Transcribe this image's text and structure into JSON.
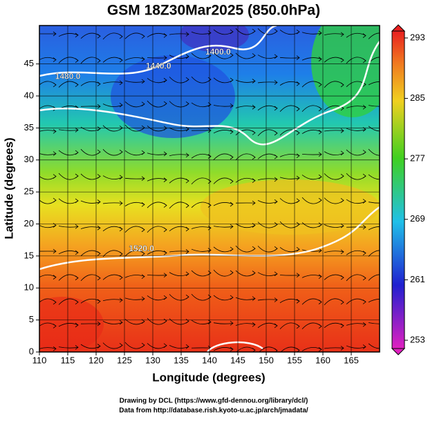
{
  "title": "GSM 18Z30Mar2025 (850.0hPa)",
  "x_axis": {
    "label": "Longitude (degrees)",
    "lim": [
      110,
      170
    ],
    "ticks": [
      110,
      115,
      120,
      125,
      130,
      135,
      140,
      145,
      150,
      155,
      160,
      165
    ]
  },
  "y_axis": {
    "label": "Latitude  (degrees)",
    "lim": [
      0,
      51
    ],
    "ticks": [
      0,
      5,
      10,
      15,
      20,
      25,
      30,
      35,
      40,
      45
    ]
  },
  "colorbar": {
    "lim": [
      253,
      293
    ],
    "ticks": [
      253,
      261,
      269,
      277,
      285,
      293
    ]
  },
  "contour_labels": [
    {
      "text": "1400.0",
      "lon": 141.5,
      "lat": 46.8
    },
    {
      "text": "1440.0",
      "lon": 131,
      "lat": 44.6
    },
    {
      "text": "1480.0",
      "lon": 115,
      "lat": 43
    },
    {
      "text": "1520.0",
      "lon": 128,
      "lat": 16.1
    }
  ],
  "credits": [
    "Drawing by DCL (https://www.gfd-dennou.org/library/dcl/)",
    "Data from http://database.rish.kyoto-u.ac.jp/arch/jmadata/"
  ]
}
